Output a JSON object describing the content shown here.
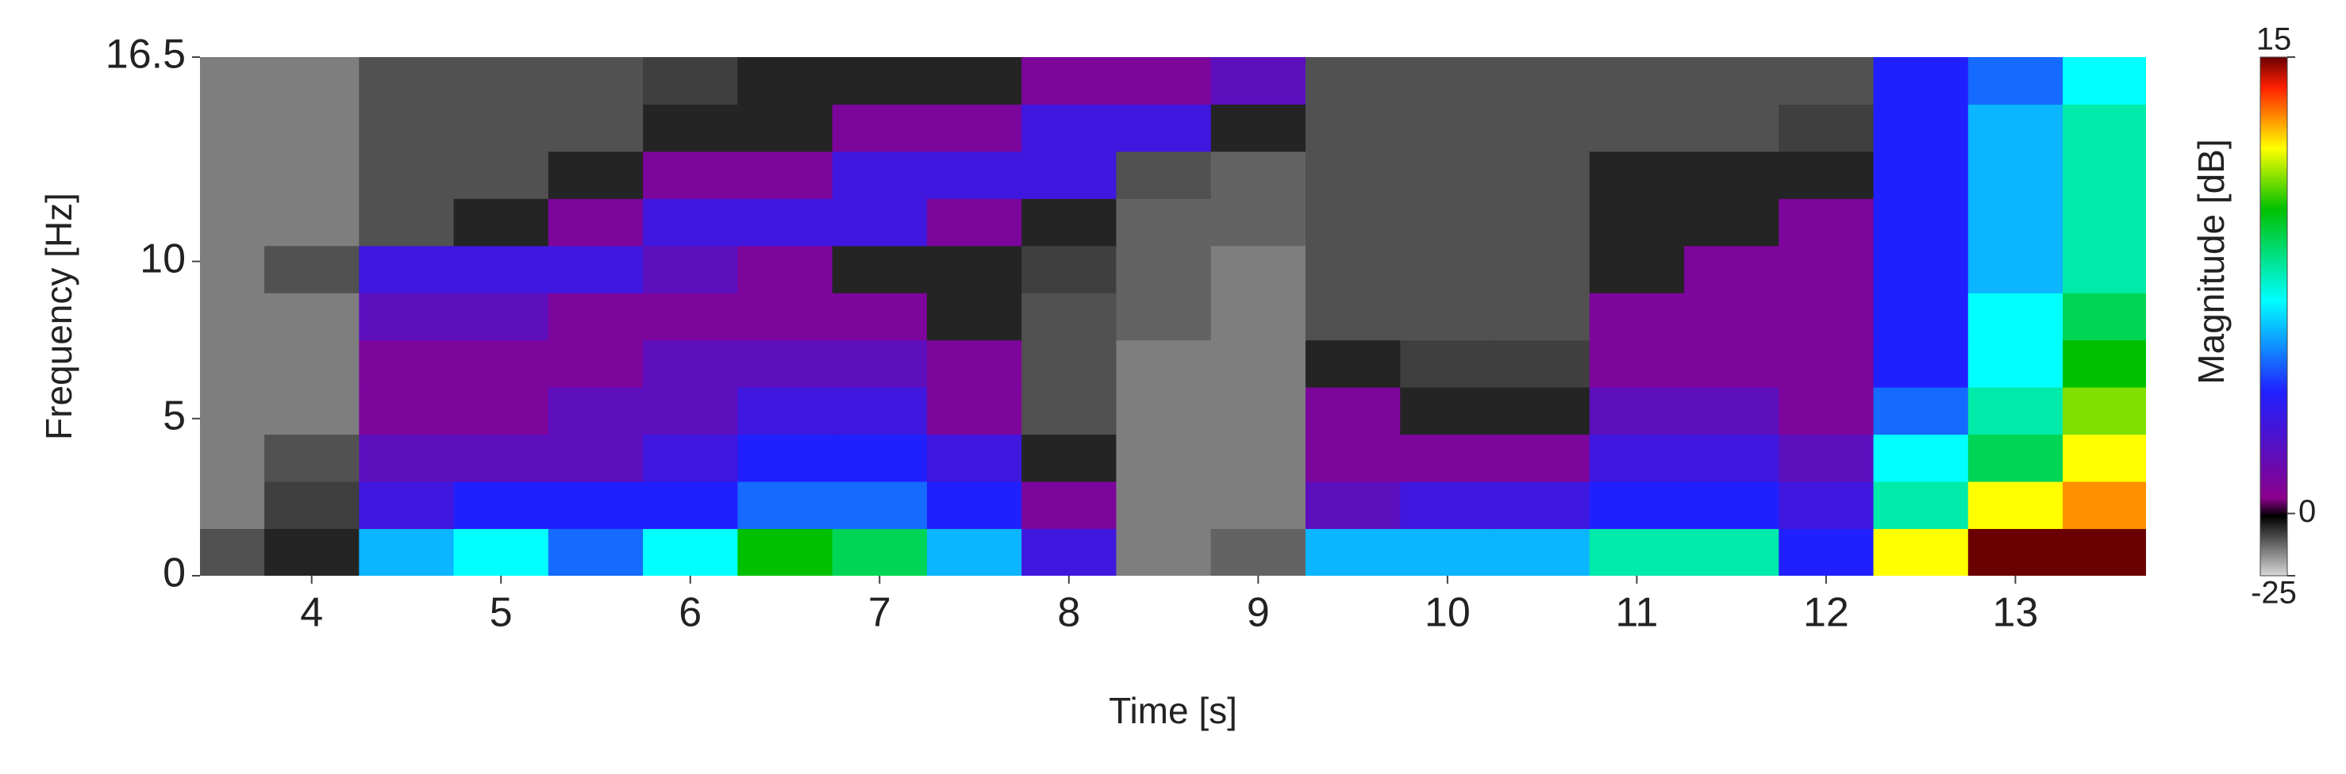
{
  "chart_data": {
    "type": "heatmap",
    "x_label": "Time [s]",
    "y_label": "Frequency  [Hz]",
    "colorbar_label": "Magnitude [dB]",
    "xlim": [
      3.41,
      13.69
    ],
    "ylim": [
      0,
      16.5
    ],
    "xticks": [
      4,
      5,
      6,
      7,
      8,
      9,
      10,
      11,
      12,
      13
    ],
    "yticks": [
      0,
      5,
      10,
      16.5
    ],
    "clim": [
      -25,
      15
    ],
    "cticks": [
      -25,
      0,
      15
    ],
    "x": [
      3.5,
      4,
      4.5,
      5,
      5.5,
      6,
      6.5,
      7,
      7.5,
      8,
      8.5,
      9,
      9.5,
      10,
      10.5,
      11,
      11.5,
      12,
      12.5,
      13,
      13.5
    ],
    "y": [
      0.75,
      2.25,
      3.75,
      5.25,
      6.75,
      8.25,
      9.75,
      11.25,
      12.75,
      14.25,
      15.75
    ],
    "z": [
      [
        -10,
        -5,
        6,
        7,
        5,
        7,
        10,
        9,
        6,
        3,
        -15,
        -12,
        6,
        6,
        6,
        8,
        8,
        4,
        12,
        15,
        15
      ],
      [
        -15,
        -8,
        3,
        4,
        4,
        4,
        5,
        5,
        4,
        1,
        -15,
        -15,
        2,
        3,
        3,
        4,
        4,
        3,
        8,
        12,
        13
      ],
      [
        -15,
        -10,
        2,
        2,
        2,
        3,
        4,
        4,
        3,
        -5,
        -15,
        -15,
        1,
        1,
        1,
        3,
        3,
        2,
        7,
        9,
        12
      ],
      [
        -15,
        -15,
        1,
        1,
        2,
        2,
        3,
        3,
        1,
        -10,
        -15,
        -15,
        1,
        -5,
        -5,
        2,
        2,
        1,
        5,
        8,
        11
      ],
      [
        -15,
        -15,
        1,
        1,
        1,
        2,
        2,
        2,
        1,
        -10,
        -15,
        -15,
        -5,
        -8,
        -8,
        1,
        1,
        1,
        4,
        7,
        10
      ],
      [
        -15,
        -15,
        2,
        2,
        1,
        1,
        1,
        1,
        -5,
        -10,
        -12,
        -15,
        -10,
        -10,
        -10,
        1,
        1,
        1,
        4,
        7,
        9
      ],
      [
        -15,
        -10,
        3,
        3,
        3,
        2,
        1,
        -5,
        -5,
        -8,
        -12,
        -15,
        -10,
        -10,
        -10,
        -5,
        1,
        1,
        4,
        6,
        8
      ],
      [
        -15,
        -15,
        -10,
        -5,
        1,
        3,
        3,
        3,
        1,
        -5,
        -12,
        -12,
        -10,
        -10,
        -10,
        -5,
        -5,
        1,
        4,
        6,
        8
      ],
      [
        -15,
        -15,
        -10,
        -10,
        -5,
        1,
        1,
        3,
        3,
        3,
        -10,
        -12,
        -10,
        -10,
        -10,
        -5,
        -5,
        -5,
        4,
        6,
        8
      ],
      [
        -15,
        -15,
        -10,
        -10,
        -10,
        -5,
        -5,
        1,
        1,
        3,
        3,
        -5,
        -10,
        -10,
        -10,
        -10,
        -10,
        -8,
        4,
        6,
        8
      ],
      [
        -15,
        -15,
        -10,
        -10,
        -10,
        -8,
        -5,
        -5,
        -5,
        1,
        1,
        2,
        -10,
        -10,
        -10,
        -10,
        -10,
        -10,
        4,
        5,
        7
      ]
    ],
    "colormap": [
      {
        "value": -25,
        "color": "#d8d8d8"
      },
      {
        "value": -1,
        "color": "#000000"
      },
      {
        "value": 0.5,
        "color": "#8b008b"
      },
      {
        "value": 4,
        "color": "#2020ff"
      },
      {
        "value": 7,
        "color": "#00ffff"
      },
      {
        "value": 10,
        "color": "#00c000"
      },
      {
        "value": 12,
        "color": "#ffff00"
      },
      {
        "value": 14,
        "color": "#ff2000"
      },
      {
        "value": 15,
        "color": "#6b0000"
      }
    ]
  }
}
